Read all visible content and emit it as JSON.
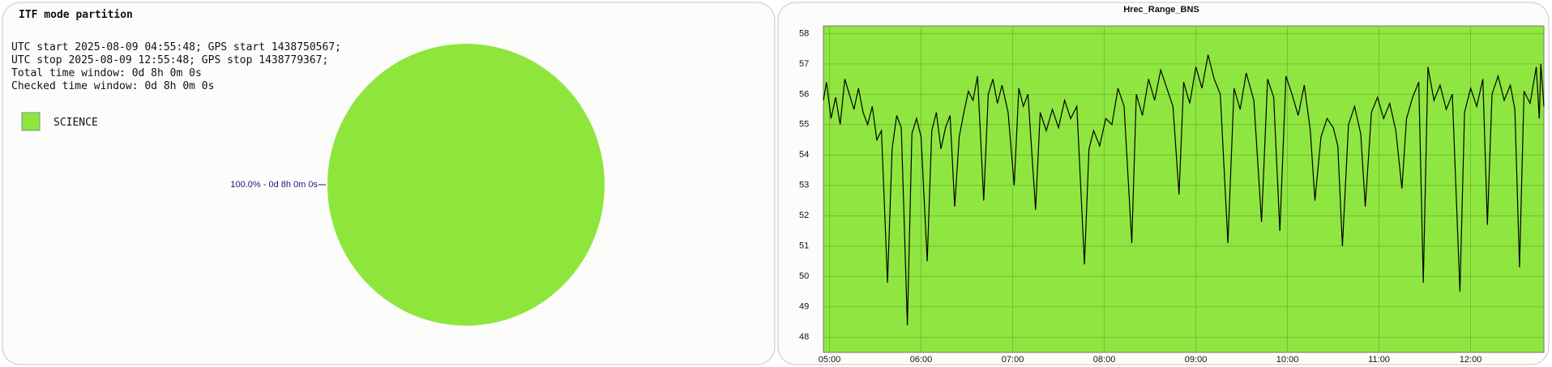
{
  "chart_data": [
    {
      "type": "pie",
      "title": "ITF mode partition",
      "text_lines": [
        "UTC start 2025-08-09 04:55:48; GPS start 1438750567;",
        "UTC stop 2025-08-09 12:55:48; GPS stop 1438779367;",
        "Total time window: 0d 8h 0m 0s",
        "Checked time window: 0d 8h 0m 0s"
      ],
      "categories": [
        "SCIENCE"
      ],
      "values": [
        100
      ],
      "value_labels": [
        "100.0% - 0d 8h 0m 0s"
      ],
      "colors": [
        "#8ee63c"
      ]
    },
    {
      "type": "line",
      "title": "Hrec_Range_BNS",
      "color": "#000000",
      "background": "#8fe640",
      "grid": true,
      "xlim": [
        "04:56",
        "12:48"
      ],
      "xticks": [
        "05:00",
        "06:00",
        "07:00",
        "08:00",
        "09:00",
        "10:00",
        "11:00",
        "12:00"
      ],
      "ylim": [
        47.5,
        58.25
      ],
      "yticks": [
        48,
        49,
        50,
        51,
        52,
        53,
        54,
        55,
        56,
        57,
        58
      ],
      "x": [
        "04:56",
        "04:58",
        "05:01",
        "05:04",
        "05:07",
        "05:10",
        "05:13",
        "05:16",
        "05:19",
        "05:22",
        "05:25",
        "05:28",
        "05:31",
        "05:34",
        "05:38",
        "05:41",
        "05:44",
        "05:47",
        "05:51",
        "05:54",
        "05:57",
        "06:00",
        "06:04",
        "06:07",
        "06:10",
        "06:13",
        "06:16",
        "06:19",
        "06:22",
        "06:25",
        "06:28",
        "06:31",
        "06:34",
        "06:37",
        "06:41",
        "06:44",
        "06:47",
        "06:50",
        "06:53",
        "06:57",
        "07:01",
        "07:04",
        "07:07",
        "07:10",
        "07:15",
        "07:18",
        "07:22",
        "07:26",
        "07:30",
        "07:34",
        "07:38",
        "07:42",
        "07:47",
        "07:50",
        "07:53",
        "07:57",
        "08:01",
        "08:05",
        "08:09",
        "08:13",
        "08:18",
        "08:21",
        "08:25",
        "08:29",
        "08:33",
        "08:37",
        "08:41",
        "08:45",
        "08:49",
        "08:52",
        "08:56",
        "09:00",
        "09:04",
        "09:08",
        "09:12",
        "09:16",
        "09:21",
        "09:25",
        "09:29",
        "09:33",
        "09:38",
        "09:43",
        "09:47",
        "09:51",
        "09:55",
        "09:59",
        "10:03",
        "10:07",
        "10:11",
        "10:15",
        "10:18",
        "10:22",
        "10:26",
        "10:30",
        "10:33",
        "10:36",
        "10:40",
        "10:44",
        "10:48",
        "10:51",
        "10:55",
        "10:59",
        "11:03",
        "11:07",
        "11:11",
        "11:15",
        "11:18",
        "11:22",
        "11:26",
        "11:29",
        "11:32",
        "11:36",
        "11:40",
        "11:44",
        "11:48",
        "11:53",
        "11:56",
        "12:00",
        "12:04",
        "12:08",
        "12:11",
        "12:14",
        "12:18",
        "12:22",
        "12:26",
        "12:29",
        "12:32",
        "12:35",
        "12:39",
        "12:43",
        "12:45",
        "12:46",
        "12:48"
      ],
      "values": [
        55.8,
        56.4,
        55.2,
        55.9,
        55.0,
        56.5,
        56.0,
        55.5,
        56.2,
        55.4,
        55.0,
        55.6,
        54.5,
        54.8,
        49.8,
        54.2,
        55.3,
        54.9,
        48.4,
        54.7,
        55.2,
        54.6,
        50.5,
        54.8,
        55.4,
        54.2,
        54.9,
        55.3,
        52.3,
        54.6,
        55.4,
        56.1,
        55.8,
        56.6,
        52.5,
        56.0,
        56.5,
        55.7,
        56.3,
        55.4,
        53.0,
        56.2,
        55.6,
        56.0,
        52.2,
        55.4,
        54.8,
        55.5,
        54.9,
        55.8,
        55.2,
        55.6,
        50.4,
        54.2,
        54.8,
        54.3,
        55.2,
        55.0,
        56.2,
        55.6,
        51.1,
        56.0,
        55.3,
        56.5,
        55.8,
        56.8,
        56.2,
        55.6,
        52.7,
        56.4,
        55.7,
        56.9,
        56.2,
        57.3,
        56.5,
        56.0,
        51.1,
        56.2,
        55.5,
        56.7,
        55.8,
        51.8,
        56.5,
        55.9,
        51.5,
        56.6,
        56.0,
        55.3,
        56.3,
        54.8,
        52.5,
        54.6,
        55.2,
        54.9,
        54.3,
        51.0,
        55.0,
        55.6,
        54.7,
        52.3,
        55.4,
        55.9,
        55.2,
        55.7,
        54.8,
        52.9,
        55.2,
        55.9,
        56.4,
        49.8,
        56.9,
        55.8,
        56.3,
        55.5,
        56.0,
        49.5,
        55.4,
        56.2,
        55.6,
        56.5,
        51.7,
        56.0,
        56.6,
        55.8,
        56.3,
        55.5,
        50.3,
        56.1,
        55.7,
        56.9,
        55.2,
        57.0,
        55.6
      ]
    }
  ]
}
